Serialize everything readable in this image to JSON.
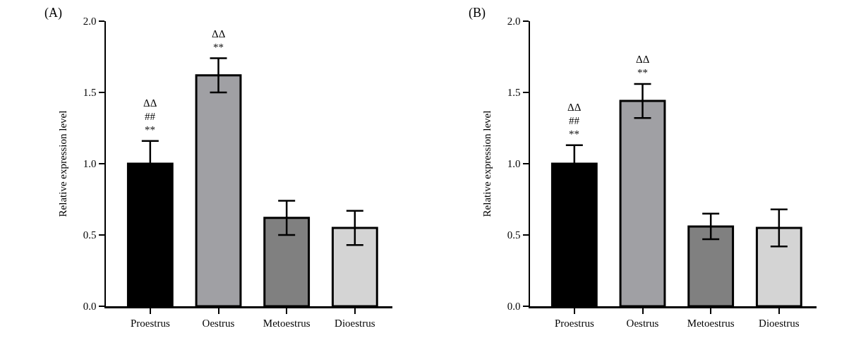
{
  "chart_data": [
    {
      "type": "bar",
      "ylabel": "Relative expression level",
      "categories": [
        "Proestrus",
        "Oestrus",
        "Metoestrus",
        "Dioestrus"
      ],
      "values": [
        1.0,
        1.62,
        0.62,
        0.55
      ],
      "errors": [
        0.16,
        0.12,
        0.12,
        0.12
      ],
      "colors": [
        "#000000",
        "#a0a0a4",
        "#808080",
        "#d4d4d4"
      ],
      "ylim": [
        0,
        2.0
      ],
      "yticks": [
        {
          "value": 0,
          "label": "0.0"
        },
        {
          "value": 0.5,
          "label": "0.5"
        },
        {
          "value": 1,
          "label": "1.0"
        },
        {
          "value": 1.5,
          "label": "1.5"
        },
        {
          "value": 2,
          "label": "2.0"
        }
      ],
      "grid": false,
      "annotations": [
        "(A)",
        "**",
        "##",
        "ΔΔ",
        "**",
        "ΔΔ"
      ]
    },
    {
      "type": "bar",
      "ylabel": "Relative expression level",
      "categories": [
        "Proestrus",
        "Oestrus",
        "Metoestrus",
        "Dioestrus"
      ],
      "values": [
        1.0,
        1.44,
        0.56,
        0.55
      ],
      "errors": [
        0.13,
        0.12,
        0.09,
        0.13
      ],
      "colors": [
        "#000000",
        "#a0a0a4",
        "#808080",
        "#d4d4d4"
      ],
      "ylim": [
        0,
        2.0
      ],
      "yticks": [
        {
          "value": 0,
          "label": "0.0"
        },
        {
          "value": 0.5,
          "label": "0.5"
        },
        {
          "value": 1,
          "label": "1.0"
        },
        {
          "value": 1.5,
          "label": "1.5"
        },
        {
          "value": 2,
          "label": "2.0"
        }
      ],
      "grid": false,
      "annotations": [
        "(B)",
        "**",
        "##",
        "ΔΔ",
        "**",
        "ΔΔ"
      ]
    }
  ]
}
